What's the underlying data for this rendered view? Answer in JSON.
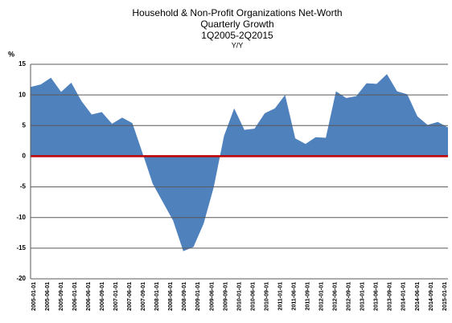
{
  "chart_data": {
    "type": "area",
    "title": "Household & Non-Profit Organizations Net-Worth",
    "subtitle": "Quarterly Growth",
    "period": "1Q2005-2Q2015",
    "measure": "Y/Y",
    "y_label": "%",
    "values": [
      11.3,
      11.7,
      12.8,
      10.5,
      12.0,
      9.0,
      6.8,
      7.2,
      5.3,
      6.3,
      5.4,
      0.5,
      -4.5,
      -7.5,
      -10.5,
      -15.5,
      -14.8,
      -11.0,
      -5.0,
      3.3,
      7.8,
      4.3,
      4.5,
      7.0,
      7.8,
      10.0,
      2.9,
      2.0,
      3.1,
      3.0,
      10.6,
      9.5,
      9.8,
      11.9,
      11.8,
      13.4,
      10.6,
      10.1,
      6.5,
      5.1,
      5.6,
      4.7
    ],
    "x_labels": [
      "2005-01-01",
      "2005-06-01",
      "2005-09-01",
      "2006-01-01",
      "2006-06-01",
      "2006-09-01",
      "2007-01-01",
      "2007-06-01",
      "2007-09-01",
      "2008-01-01",
      "2008-06-01",
      "2008-09-01",
      "2009-01-01",
      "2009-06-01",
      "2009-09-01",
      "2010-01-01",
      "2010-06-01",
      "2010-09-01",
      "2011-01-01",
      "2011-06-01",
      "2011-09-01",
      "2012-01-01",
      "2012-06-01",
      "2012-09-01",
      "2013-01-01",
      "2013-06-01",
      "2013-09-01",
      "2014-01-01",
      "2014-06-01",
      "2014-09-01",
      "2015-01-01"
    ],
    "color": "#4f81bd",
    "zero_line_color": "#c00000",
    "ylim": [
      -20,
      15
    ],
    "yticks": [
      -20,
      -15,
      -10,
      -5,
      0,
      5,
      10,
      15
    ],
    "grid": true
  }
}
